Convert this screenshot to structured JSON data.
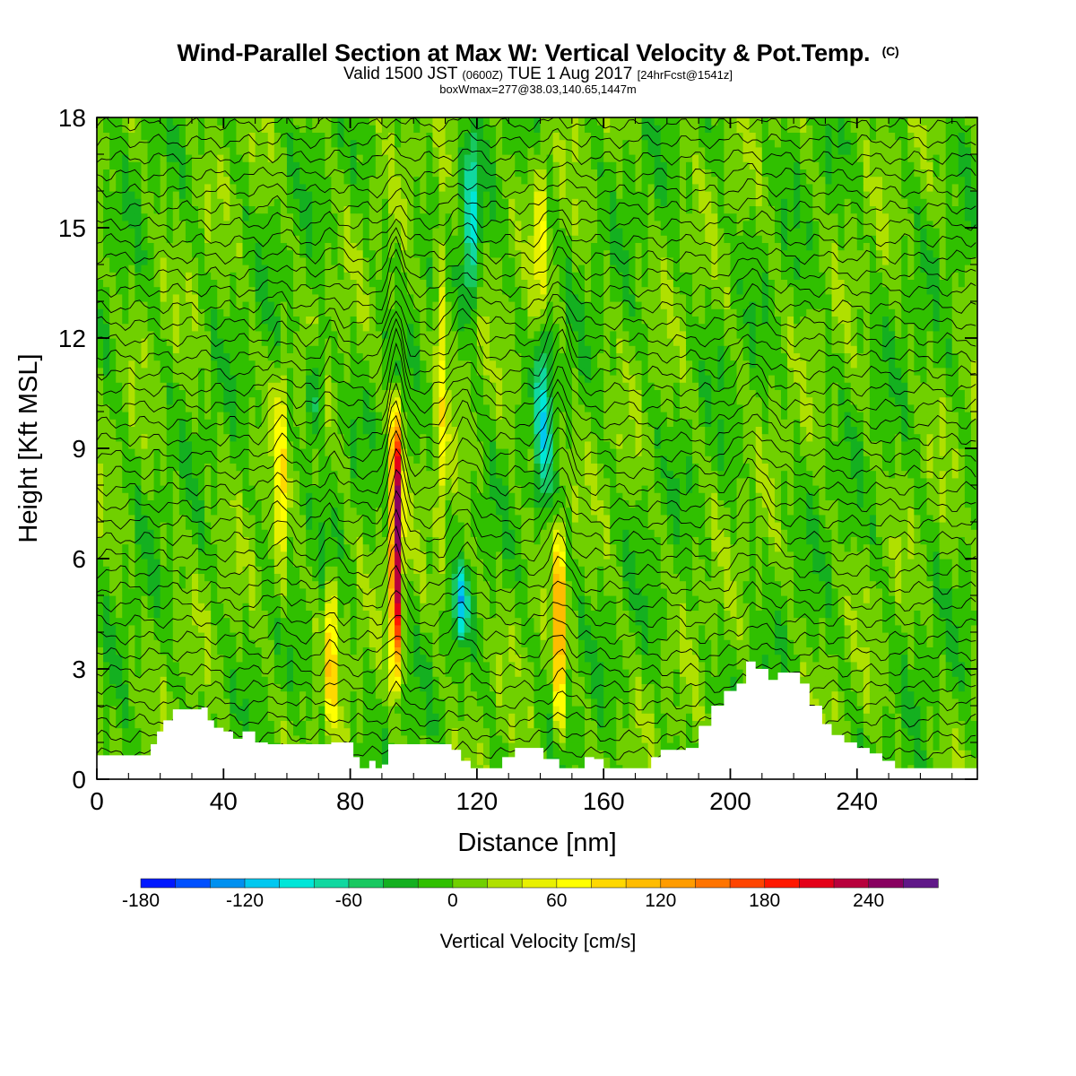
{
  "header": {
    "title": "Wind-Parallel Section at Max W: Vertical Velocity & Pot.Temp.",
    "title_tag": "(C)",
    "subtitle_a": "Valid 1500 JST",
    "subtitle_b": "(0600Z)",
    "subtitle_c": "TUE 1 Aug 2017",
    "subtitle_d": "[24hrFcst@1541z]",
    "subline": "boxWmax=277@38.03,140.65,1447m"
  },
  "chart_data": {
    "type": "heatmap",
    "title": "Wind-Parallel Section at Max W: Vertical Velocity & Pot.Temp.",
    "xlabel": "Distance [nm]",
    "ylabel": "Height [Kft MSL]",
    "xlim": [
      0,
      278
    ],
    "ylim": [
      0,
      18
    ],
    "x_ticks": [
      "0",
      "40",
      "80",
      "120",
      "160",
      "200",
      "240"
    ],
    "y_ticks": [
      "0",
      "3",
      "6",
      "9",
      "12",
      "15",
      "18"
    ],
    "colorbar": {
      "label": "Vertical Velocity [cm/s]",
      "tick_labels": [
        "-180",
        "-120",
        "-60",
        "0",
        "60",
        "120",
        "180",
        "240"
      ],
      "min": -180,
      "max": 280,
      "step": 20,
      "colors": [
        "#0018ff",
        "#0050ff",
        "#0090f0",
        "#00c8f0",
        "#00e6d8",
        "#10d8a0",
        "#18c860",
        "#14b020",
        "#30c000",
        "#70d000",
        "#b0e000",
        "#e8f000",
        "#ffff00",
        "#ffd800",
        "#ffbc00",
        "#ff9c00",
        "#ff7400",
        "#ff4400",
        "#ff1800",
        "#e40018",
        "#b8003c",
        "#880060",
        "#601888"
      ]
    },
    "updraft_cores": [
      {
        "x": 94.5,
        "peak": 277,
        "bottom": 2.0,
        "top": 11.0
      },
      {
        "x": 146,
        "peak": 140,
        "bottom": 0.5,
        "top": 7.5
      },
      {
        "x": 74,
        "peak": 110,
        "bottom": 1.0,
        "top": 6.0
      },
      {
        "x": 58,
        "peak": 80,
        "bottom": 4.0,
        "top": 12.0
      },
      {
        "x": 109,
        "peak": 60,
        "bottom": 4.0,
        "top": 18.0
      },
      {
        "x": 140,
        "peak": 60,
        "bottom": 12.0,
        "top": 18.0
      }
    ],
    "downdraft_cores": [
      {
        "x": 118,
        "peak": -90,
        "bottom": 12.0,
        "top": 18.0
      },
      {
        "x": 115,
        "peak": -90,
        "bottom": 3.5,
        "top": 6.0
      },
      {
        "x": 141,
        "peak": -80,
        "bottom": 6.5,
        "top": 13.0
      },
      {
        "x": 69,
        "peak": -60,
        "bottom": 9.0,
        "top": 12.5
      }
    ],
    "terrain": [
      [
        0,
        0.65
      ],
      [
        16,
        0.65
      ],
      [
        17,
        0.95
      ],
      [
        19,
        1.3
      ],
      [
        21,
        1.6
      ],
      [
        24,
        1.9
      ],
      [
        33,
        1.95
      ],
      [
        35,
        1.6
      ],
      [
        37,
        1.4
      ],
      [
        40,
        1.3
      ],
      [
        43,
        1.1
      ],
      [
        46,
        1.3
      ],
      [
        50,
        1.0
      ],
      [
        54,
        0.95
      ],
      [
        58,
        0.95
      ],
      [
        72,
        0.95
      ],
      [
        74,
        1.0
      ],
      [
        79,
        1.0
      ],
      [
        81,
        0.6
      ],
      [
        83,
        0.3
      ],
      [
        86,
        0.5
      ],
      [
        88,
        0.3
      ],
      [
        90,
        0.4
      ],
      [
        92,
        0.95
      ],
      [
        96,
        0.95
      ],
      [
        108,
        0.95
      ],
      [
        112,
        0.8
      ],
      [
        115,
        0.5
      ],
      [
        118,
        0.3
      ],
      [
        124,
        0.3
      ],
      [
        128,
        0.6
      ],
      [
        132,
        0.85
      ],
      [
        137,
        0.85
      ],
      [
        141,
        0.55
      ],
      [
        146,
        0.3
      ],
      [
        150,
        0.3
      ],
      [
        154,
        0.6
      ],
      [
        157,
        0.55
      ],
      [
        160,
        0.3
      ],
      [
        170,
        0.3
      ],
      [
        175,
        0.6
      ],
      [
        178,
        0.8
      ],
      [
        186,
        0.85
      ],
      [
        190,
        1.45
      ],
      [
        194,
        2.0
      ],
      [
        198,
        2.4
      ],
      [
        202,
        2.6
      ],
      [
        205,
        3.2
      ],
      [
        208,
        3.0
      ],
      [
        212,
        2.7
      ],
      [
        215,
        2.9
      ],
      [
        219,
        2.9
      ],
      [
        222,
        2.6
      ],
      [
        225,
        2.0
      ],
      [
        229,
        1.5
      ],
      [
        232,
        1.2
      ],
      [
        236,
        1.0
      ],
      [
        240,
        0.85
      ],
      [
        244,
        0.7
      ],
      [
        248,
        0.5
      ],
      [
        252,
        0.3
      ],
      [
        278,
        0.3
      ]
    ]
  }
}
